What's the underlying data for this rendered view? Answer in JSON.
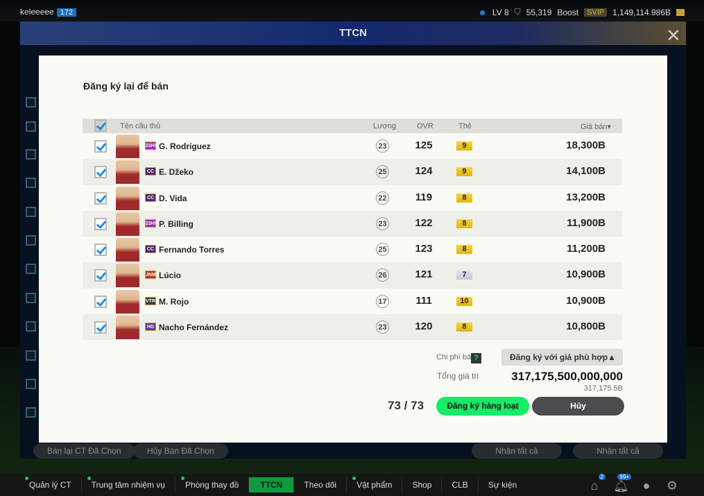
{
  "topbar": {
    "username": "keleeeee",
    "user_level": "172",
    "lv": "LV 8",
    "points": "55,319",
    "boost": "Boost",
    "svip": "SVIP",
    "balance": "1,149,114.986B"
  },
  "panel": {
    "title": "TTCN"
  },
  "background_buttons": [
    "Bán lại CT Đã Chọn",
    "Hủy Bán Đã Chọn",
    "Nhận tất cả",
    "Nhận tất cả"
  ],
  "modal": {
    "title": "Đăng ký lại để bán",
    "columns": {
      "name": "Tên cầu thủ",
      "salary": "Lương",
      "ovr": "OVR",
      "grade": "Thẻ",
      "price": "Giá bán▾"
    },
    "players": [
      {
        "badge": "23HW",
        "badge_color": "#9a2fb0",
        "name": "G. Rodríguez",
        "salary": "23",
        "ovr": "125",
        "grade": "9",
        "price": "18,300B",
        "checked": true
      },
      {
        "badge": "CC",
        "badge_color": "#4a2a6a",
        "name": "E. Džeko",
        "salary": "25",
        "ovr": "124",
        "grade": "9",
        "price": "14,100B",
        "checked": true
      },
      {
        "badge": "CC",
        "badge_color": "#4a2a6a",
        "name": "D. Vida",
        "salary": "22",
        "ovr": "119",
        "grade": "8",
        "price": "13,200B",
        "checked": true
      },
      {
        "badge": "23HW",
        "badge_color": "#9a2fb0",
        "name": "P. Billing",
        "salary": "23",
        "ovr": "122",
        "grade": "8",
        "price": "11,900B",
        "checked": true
      },
      {
        "badge": "CC",
        "badge_color": "#4a2a6a",
        "name": "Fernando Torres",
        "salary": "25",
        "ovr": "123",
        "grade": "8",
        "price": "11,200B",
        "checked": true
      },
      {
        "badge": "JNM",
        "badge_color": "#b03a20",
        "name": "Lúcio",
        "salary": "26",
        "ovr": "121",
        "grade": "7",
        "price": "10,900B",
        "checked": true
      },
      {
        "badge": "VTR",
        "badge_color": "#3a3a2a",
        "name": "M. Rojo",
        "salary": "17",
        "ovr": "111",
        "grade": "10",
        "price": "10,900B",
        "checked": true
      },
      {
        "badge": "HG",
        "badge_color": "#5a3aa0",
        "name": "Nacho Fernández",
        "salary": "23",
        "ovr": "120",
        "grade": "8",
        "price": "10,800B",
        "checked": true
      }
    ],
    "fee_label": "Chi phí bán",
    "help": "?",
    "price_mode": "Đăng ký với giá phù hợp",
    "total_label": "Tổng giá trị",
    "total_value": "317,175,500,000,000",
    "total_short": "317,175.5B",
    "selected_count": "73",
    "total_count": "73",
    "count_sep": "/",
    "register_button": "Đăng ký hàng loạt",
    "cancel_button": "Hủy"
  },
  "nav": {
    "items": [
      {
        "label": "Quản lý CT",
        "dot": true
      },
      {
        "label": "Trung tâm nhiệm vụ",
        "dot": true
      },
      {
        "label": "Phòng thay đồ",
        "dot": true
      },
      {
        "label": "TTCN",
        "active": true
      },
      {
        "label": "Theo dõi"
      },
      {
        "label": "Vật phẩm",
        "dot": true
      },
      {
        "label": "Shop"
      },
      {
        "label": "CLB"
      },
      {
        "label": "Sự kiện"
      }
    ],
    "home_badge": "2",
    "notif_badge": "99+"
  }
}
